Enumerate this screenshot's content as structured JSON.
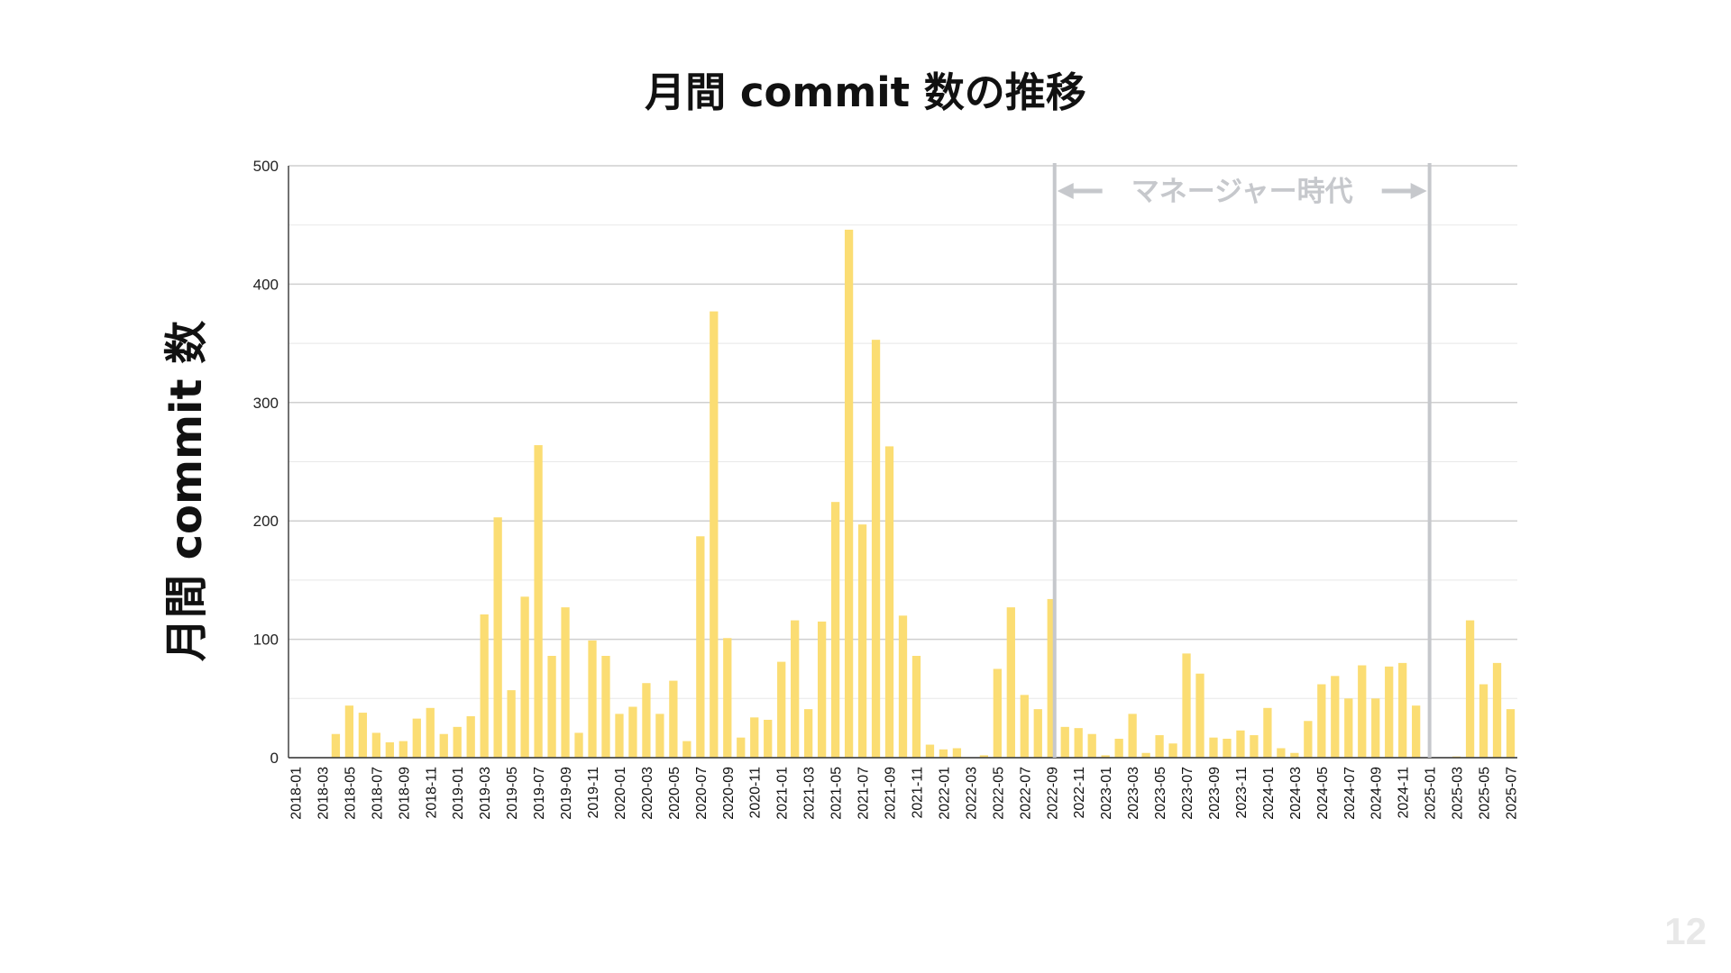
{
  "page": {
    "number": "12"
  },
  "chart_data": {
    "type": "bar",
    "title": "月間 commit 数の推移",
    "xlabel": "",
    "ylabel": "月間 commit 数",
    "ylim": [
      0,
      500
    ],
    "yticks": [
      0,
      100,
      200,
      300,
      400,
      500
    ],
    "grid": true,
    "bar_color": "#fbdd73",
    "annotation": {
      "label": "マネージャー時代",
      "from": "2022-10",
      "to": "2025-01",
      "color": "#c6c8cc"
    },
    "categories": [
      "2018-01",
      "2018-02",
      "2018-03",
      "2018-04",
      "2018-05",
      "2018-06",
      "2018-07",
      "2018-08",
      "2018-09",
      "2018-10",
      "2018-11",
      "2018-12",
      "2019-01",
      "2019-02",
      "2019-03",
      "2019-04",
      "2019-05",
      "2019-06",
      "2019-07",
      "2019-08",
      "2019-09",
      "2019-10",
      "2019-11",
      "2019-12",
      "2020-01",
      "2020-02",
      "2020-03",
      "2020-04",
      "2020-05",
      "2020-06",
      "2020-07",
      "2020-08",
      "2020-09",
      "2020-10",
      "2020-11",
      "2020-12",
      "2021-01",
      "2021-02",
      "2021-03",
      "2021-04",
      "2021-05",
      "2021-06",
      "2021-07",
      "2021-08",
      "2021-09",
      "2021-10",
      "2021-11",
      "2021-12",
      "2022-01",
      "2022-02",
      "2022-03",
      "2022-04",
      "2022-05",
      "2022-06",
      "2022-07",
      "2022-08",
      "2022-09",
      "2022-10",
      "2022-11",
      "2022-12",
      "2023-01",
      "2023-02",
      "2023-03",
      "2023-04",
      "2023-05",
      "2023-06",
      "2023-07",
      "2023-08",
      "2023-09",
      "2023-10",
      "2023-11",
      "2023-12",
      "2024-01",
      "2024-02",
      "2024-03",
      "2024-04",
      "2024-05",
      "2024-06",
      "2024-07",
      "2024-08",
      "2024-09",
      "2024-10",
      "2024-11",
      "2024-12",
      "2025-01",
      "2025-02",
      "2025-03",
      "2025-04",
      "2025-05",
      "2025-06",
      "2025-07"
    ],
    "values": [
      0,
      0,
      0,
      20,
      44,
      38,
      21,
      13,
      14,
      33,
      42,
      20,
      26,
      35,
      121,
      203,
      57,
      136,
      264,
      86,
      127,
      21,
      99,
      86,
      37,
      43,
      63,
      37,
      65,
      14,
      187,
      377,
      101,
      17,
      34,
      32,
      81,
      116,
      41,
      115,
      216,
      446,
      197,
      353,
      263,
      120,
      86,
      11,
      7,
      8,
      0,
      2,
      75,
      127,
      53,
      41,
      134,
      26,
      25,
      20,
      2,
      16,
      37,
      4,
      19,
      12,
      88,
      71,
      17,
      16,
      23,
      19,
      42,
      8,
      4,
      31,
      62,
      69,
      50,
      78,
      50,
      77,
      80,
      44,
      0,
      0,
      1,
      116,
      62,
      80,
      41
    ]
  }
}
